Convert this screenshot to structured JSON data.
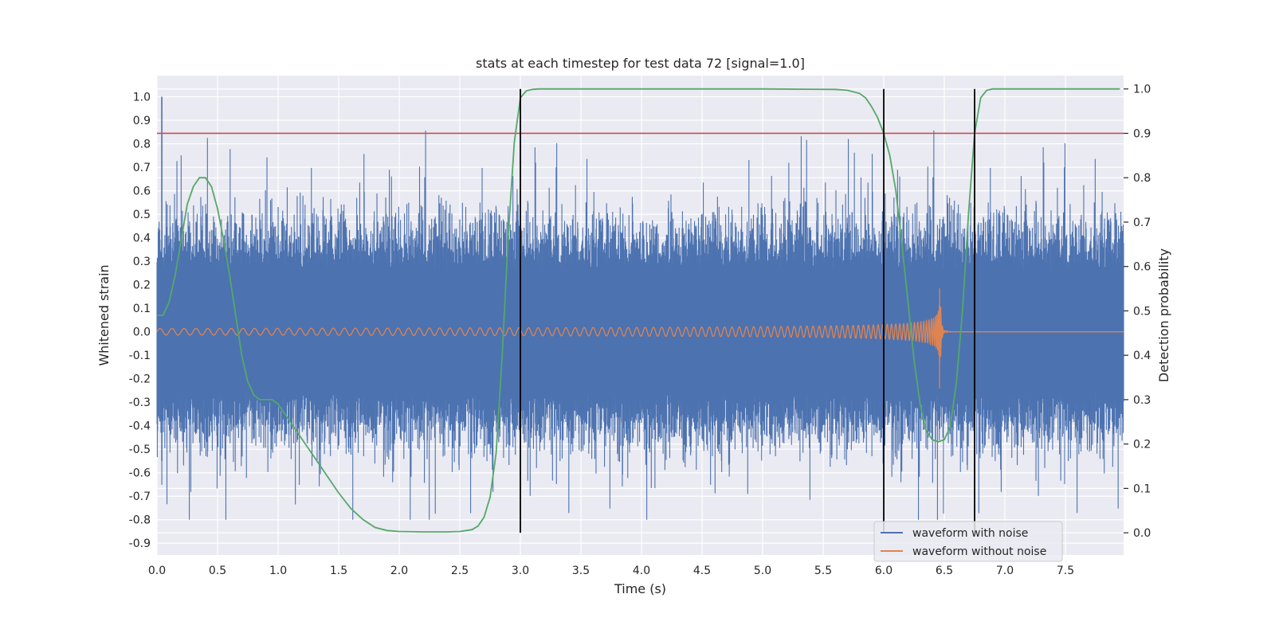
{
  "chart_data": {
    "type": "line",
    "title": "stats at each timestep for test data 72 [signal=1.0]",
    "xlabel": "Time (s)",
    "ylabel_left": "Whitened strain",
    "ylabel_right": "Detection probability",
    "xlim": [
      0.0,
      7.98
    ],
    "ylim_left": [
      -0.95,
      1.09
    ],
    "ylim_right": [
      -0.05,
      1.03
    ],
    "x_ticks": [
      "0.0",
      "0.5",
      "1.0",
      "1.5",
      "2.0",
      "2.5",
      "3.0",
      "3.5",
      "4.0",
      "4.5",
      "5.0",
      "5.5",
      "6.0",
      "6.5",
      "7.0",
      "7.5"
    ],
    "y_left_ticks": [
      "1.0",
      "0.9",
      "0.8",
      "0.7",
      "0.6",
      "0.5",
      "0.4",
      "0.3",
      "0.2",
      "0.1",
      "0.0",
      "-0.1",
      "-0.2",
      "-0.3",
      "-0.4",
      "-0.5",
      "-0.6",
      "-0.7",
      "-0.8",
      "-0.9"
    ],
    "y_right_ticks": [
      "1.0",
      "0.9",
      "0.8",
      "0.7",
      "0.6",
      "0.5",
      "0.4",
      "0.3",
      "0.2",
      "0.1",
      "0.0"
    ],
    "grid": true,
    "legend_position": "bottom-right",
    "threshold_line": {
      "axis": "right",
      "y": 0.9,
      "color": "#c44e52"
    },
    "vertical_lines": {
      "x": [
        3.0,
        6.0,
        6.75
      ],
      "color": "#000000"
    },
    "series": [
      {
        "name": "waveform with noise",
        "axis": "left",
        "color": "#4c72b0",
        "description_values": {
          "typical_envelope": [
            -0.52,
            0.52
          ],
          "max": 1.0,
          "min": -0.8
        }
      },
      {
        "name": "waveform without noise",
        "axis": "left",
        "color": "#dd8452",
        "chirp": {
          "start": 0.0,
          "merger": 6.46,
          "peak_amplitude": 0.3,
          "start_amplitude": 0.01
        }
      },
      {
        "name": "",
        "axis": "right",
        "color": "#55a868",
        "x": [
          0.0,
          0.05,
          0.1,
          0.15,
          0.2,
          0.25,
          0.3,
          0.35,
          0.4,
          0.45,
          0.5,
          0.55,
          0.6,
          0.65,
          0.7,
          0.75,
          0.8,
          0.85,
          0.9,
          0.95,
          1.0,
          1.05,
          1.1,
          1.2,
          1.3,
          1.4,
          1.5,
          1.6,
          1.7,
          1.8,
          1.9,
          2.0,
          2.2,
          2.4,
          2.5,
          2.6,
          2.65,
          2.7,
          2.75,
          2.8,
          2.85,
          2.9,
          2.95,
          3.0,
          3.05,
          3.1,
          3.15,
          3.2,
          3.4,
          4.0,
          5.0,
          5.6,
          5.7,
          5.8,
          5.85,
          5.9,
          5.95,
          6.0,
          6.05,
          6.1,
          6.15,
          6.2,
          6.25,
          6.3,
          6.35,
          6.4,
          6.45,
          6.5,
          6.55,
          6.6,
          6.65,
          6.7,
          6.75,
          6.8,
          6.85,
          6.9,
          7.0,
          7.5,
          7.95
        ],
        "values": [
          0.49,
          0.49,
          0.52,
          0.58,
          0.66,
          0.74,
          0.78,
          0.8,
          0.8,
          0.78,
          0.73,
          0.66,
          0.58,
          0.49,
          0.4,
          0.34,
          0.31,
          0.3,
          0.3,
          0.3,
          0.29,
          0.27,
          0.25,
          0.21,
          0.17,
          0.13,
          0.09,
          0.055,
          0.03,
          0.012,
          0.005,
          0.003,
          0.002,
          0.002,
          0.003,
          0.007,
          0.015,
          0.035,
          0.08,
          0.18,
          0.4,
          0.67,
          0.88,
          0.98,
          0.996,
          0.999,
          1.0,
          1.0,
          1.0,
          1.0,
          1.0,
          0.999,
          0.997,
          0.99,
          0.98,
          0.96,
          0.935,
          0.9,
          0.85,
          0.77,
          0.65,
          0.52,
          0.39,
          0.29,
          0.23,
          0.21,
          0.205,
          0.21,
          0.24,
          0.34,
          0.5,
          0.72,
          0.9,
          0.98,
          0.997,
          1.0,
          1.0,
          1.0,
          1.0
        ]
      }
    ]
  }
}
